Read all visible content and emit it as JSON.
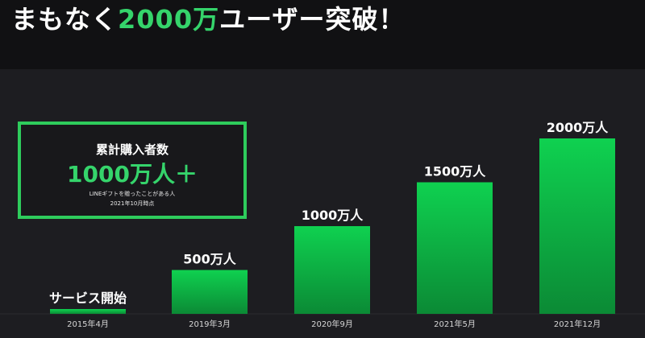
{
  "headline": {
    "prefix": "まもなく",
    "highlight": "2000万",
    "suffix": "ユーザー突破！"
  },
  "callout": {
    "title": "累計購入者数",
    "value": "1000万人＋",
    "note_line1": "LINEギフトを贈ったことがある人",
    "note_line2": "2021年10月時点"
  },
  "colors": {
    "accent": "#35d46b",
    "bar_top": "#0fd150",
    "bar_bottom": "#0b8a35",
    "background": "#1d1d21"
  },
  "chart_data": {
    "type": "bar",
    "categories": [
      "2015年4月",
      "2019年3月",
      "2020年9月",
      "2021年5月",
      "2021年12月"
    ],
    "values": [
      0,
      500,
      1000,
      1500,
      2000
    ],
    "data_labels": [
      "サービス開始",
      "500万人",
      "1000万人",
      "1500万人",
      "2000万人"
    ],
    "unit": "万人",
    "ylim": [
      0,
      2000
    ],
    "grid": false,
    "legend": "none",
    "title": "",
    "xlabel": "",
    "ylabel": ""
  }
}
